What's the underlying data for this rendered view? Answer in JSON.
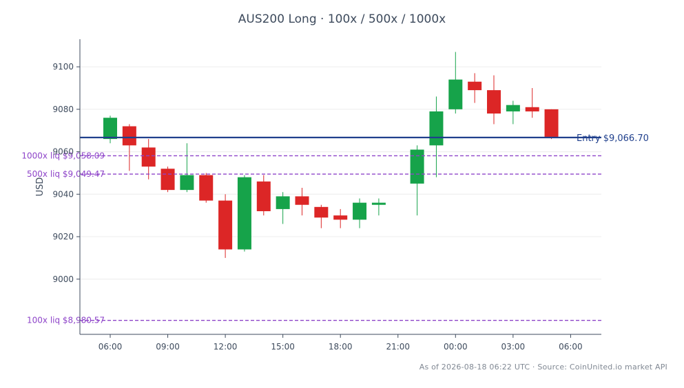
{
  "chart_data": {
    "type": "candlestick",
    "title": "AUS200 Long · 100x / 500x / 1000x",
    "ylabel": "USD",
    "ylim": [
      8974,
      9113
    ],
    "yticks": [
      9000,
      9020,
      9040,
      9060,
      9080,
      9100
    ],
    "grid": true,
    "x_ticks": [
      "06:00",
      "09:00",
      "12:00",
      "15:00",
      "18:00",
      "21:00",
      "00:00",
      "03:00",
      "06:00"
    ],
    "candles": [
      {
        "open": 9066,
        "high": 9077,
        "low": 9064,
        "close": 9076
      },
      {
        "open": 9072,
        "high": 9073,
        "low": 9051,
        "close": 9063
      },
      {
        "open": 9062,
        "high": 9066,
        "low": 9047,
        "close": 9053
      },
      {
        "open": 9052,
        "high": 9053,
        "low": 9041,
        "close": 9042
      },
      {
        "open": 9042,
        "high": 9064,
        "low": 9041,
        "close": 9049
      },
      {
        "open": 9049,
        "high": 9050,
        "low": 9036,
        "close": 9037
      },
      {
        "open": 9037,
        "high": 9040,
        "low": 9010,
        "close": 9014
      },
      {
        "open": 9014,
        "high": 9049,
        "low": 9013,
        "close": 9048
      },
      {
        "open": 9046,
        "high": 9049,
        "low": 9030,
        "close": 9032
      },
      {
        "open": 9033,
        "high": 9041,
        "low": 9026,
        "close": 9039
      },
      {
        "open": 9039,
        "high": 9043,
        "low": 9030,
        "close": 9035
      },
      {
        "open": 9034,
        "high": 9035,
        "low": 9024,
        "close": 9029
      },
      {
        "open": 9030,
        "high": 9033,
        "low": 9024,
        "close": 9028
      },
      {
        "open": 9028,
        "high": 9038,
        "low": 9024,
        "close": 9036
      },
      {
        "open": 9035,
        "high": 9038,
        "low": 9030,
        "close": 9036
      },
      null,
      {
        "open": 9045,
        "high": 9063,
        "low": 9030,
        "close": 9061
      },
      {
        "open": 9063,
        "high": 9086,
        "low": 9048,
        "close": 9079
      },
      {
        "open": 9080,
        "high": 9107,
        "low": 9078,
        "close": 9094
      },
      {
        "open": 9093,
        "high": 9097,
        "low": 9083,
        "close": 9089
      },
      {
        "open": 9089,
        "high": 9096,
        "low": 9073,
        "close": 9078
      },
      {
        "open": 9079,
        "high": 9084,
        "low": 9073,
        "close": 9082
      },
      {
        "open": 9081,
        "high": 9090,
        "low": 9076,
        "close": 9079
      },
      {
        "open": 9080,
        "high": 9080,
        "low": 9066,
        "close": 9067
      }
    ],
    "entry": {
      "value": 9066.7,
      "label": "Entry $9,066.70",
      "color": "#1f3f8c"
    },
    "liquidations": [
      {
        "value": 9058.09,
        "label": "1000x liq $9,058.09"
      },
      {
        "value": 9049.47,
        "label": "500x liq $9,049.47"
      },
      {
        "value": 8980.57,
        "label": "100x liq $8,980.57"
      }
    ],
    "colors": {
      "up": "#16a34a",
      "down": "#dc2626",
      "liq": "#8e44c9",
      "axis": "#3d4a5c",
      "grid": "#ececec"
    }
  },
  "footer": "As of 2026-08-18 06:22 UTC · Source: CoinUnited.io market API"
}
